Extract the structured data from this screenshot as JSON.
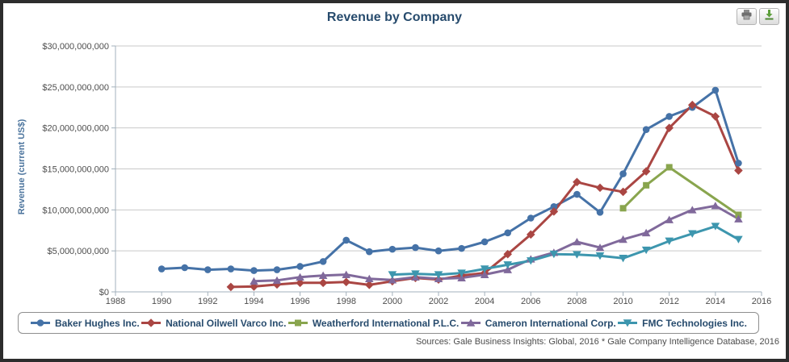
{
  "header": {
    "print_button": "print chart",
    "download_button": "download chart"
  },
  "source_note": "Sources: Gale Business Insights: Global, 2016 * Gale Company Intelligence Database, 2016",
  "colors": {
    "title": "#274b6d",
    "axis_title": "#4d759e",
    "grid": "#c9c9c9",
    "axis_line": "#a3b1bc",
    "tick_label": "#4d4d4d",
    "download_icon_green": "#5ea03c"
  },
  "chart_data": {
    "type": "line",
    "title": "Revenue by Company",
    "xlabel": "",
    "ylabel": "Revenue (current US$)",
    "xlim": [
      1988,
      2016
    ],
    "ylim": [
      0,
      30000000000
    ],
    "grid": "horizontal",
    "legend_position": "bottom",
    "x_ticks": [
      1988,
      1990,
      1992,
      1994,
      1996,
      1998,
      2000,
      2002,
      2004,
      2006,
      2008,
      2010,
      2012,
      2014,
      2016
    ],
    "y_ticks": [
      0,
      5000000000,
      10000000000,
      15000000000,
      20000000000,
      25000000000,
      30000000000
    ],
    "y_tick_labels": [
      "$0",
      "$5,000,000,000",
      "$10,000,000,000",
      "$15,000,000,000",
      "$20,000,000,000",
      "$25,000,000,000",
      "$30,000,000,000"
    ],
    "series": [
      {
        "name": "Baker Hughes Inc.",
        "color": "#4572A7",
        "marker": "circle",
        "points": [
          [
            1990,
            2800000000
          ],
          [
            1991,
            2950000000
          ],
          [
            1992,
            2700000000
          ],
          [
            1993,
            2800000000
          ],
          [
            1994,
            2600000000
          ],
          [
            1995,
            2700000000
          ],
          [
            1996,
            3100000000
          ],
          [
            1997,
            3700000000
          ],
          [
            1998,
            6300000000
          ],
          [
            1999,
            4900000000
          ],
          [
            2000,
            5200000000
          ],
          [
            2001,
            5400000000
          ],
          [
            2002,
            5000000000
          ],
          [
            2003,
            5300000000
          ],
          [
            2004,
            6100000000
          ],
          [
            2005,
            7200000000
          ],
          [
            2006,
            9000000000
          ],
          [
            2007,
            10400000000
          ],
          [
            2008,
            11900000000
          ],
          [
            2009,
            9700000000
          ],
          [
            2010,
            14400000000
          ],
          [
            2011,
            19800000000
          ],
          [
            2012,
            21400000000
          ],
          [
            2013,
            22500000000
          ],
          [
            2014,
            24600000000
          ],
          [
            2015,
            15700000000
          ]
        ]
      },
      {
        "name": "National Oilwell Varco Inc.",
        "color": "#AA4643",
        "marker": "diamond",
        "points": [
          [
            1993,
            600000000
          ],
          [
            1994,
            650000000
          ],
          [
            1995,
            900000000
          ],
          [
            1996,
            1100000000
          ],
          [
            1997,
            1100000000
          ],
          [
            1998,
            1200000000
          ],
          [
            1999,
            850000000
          ],
          [
            2000,
            1300000000
          ],
          [
            2001,
            1700000000
          ],
          [
            2002,
            1500000000
          ],
          [
            2003,
            2000000000
          ],
          [
            2004,
            2300000000
          ],
          [
            2005,
            4600000000
          ],
          [
            2006,
            7000000000
          ],
          [
            2007,
            9800000000
          ],
          [
            2008,
            13400000000
          ],
          [
            2009,
            12700000000
          ],
          [
            2010,
            12200000000
          ],
          [
            2011,
            14700000000
          ],
          [
            2012,
            20000000000
          ],
          [
            2013,
            22800000000
          ],
          [
            2014,
            21400000000
          ],
          [
            2015,
            14800000000
          ]
        ]
      },
      {
        "name": "Weatherford International P.L.C.",
        "color": "#89A54E",
        "marker": "square",
        "points": [
          [
            2010,
            10200000000
          ],
          [
            2011,
            13000000000
          ],
          [
            2012,
            15200000000
          ],
          [
            2015,
            9400000000
          ]
        ]
      },
      {
        "name": "Cameron International Corp.",
        "color": "#80699B",
        "marker": "triangle",
        "points": [
          [
            1994,
            1300000000
          ],
          [
            1995,
            1400000000
          ],
          [
            1996,
            1800000000
          ],
          [
            1997,
            2000000000
          ],
          [
            1998,
            2100000000
          ],
          [
            1999,
            1600000000
          ],
          [
            2000,
            1450000000
          ],
          [
            2001,
            1800000000
          ],
          [
            2002,
            1600000000
          ],
          [
            2003,
            1700000000
          ],
          [
            2004,
            2100000000
          ],
          [
            2005,
            2700000000
          ],
          [
            2006,
            4000000000
          ],
          [
            2007,
            4800000000
          ],
          [
            2008,
            6100000000
          ],
          [
            2009,
            5400000000
          ],
          [
            2010,
            6400000000
          ],
          [
            2011,
            7200000000
          ],
          [
            2012,
            8800000000
          ],
          [
            2013,
            10000000000
          ],
          [
            2014,
            10500000000
          ],
          [
            2015,
            8900000000
          ]
        ]
      },
      {
        "name": "FMC Technologies Inc.",
        "color": "#3D96AE",
        "marker": "triangle-down",
        "points": [
          [
            2000,
            2100000000
          ],
          [
            2001,
            2200000000
          ],
          [
            2002,
            2100000000
          ],
          [
            2003,
            2300000000
          ],
          [
            2004,
            2800000000
          ],
          [
            2005,
            3300000000
          ],
          [
            2006,
            3800000000
          ],
          [
            2007,
            4600000000
          ],
          [
            2008,
            4550000000
          ],
          [
            2009,
            4400000000
          ],
          [
            2010,
            4100000000
          ],
          [
            2011,
            5100000000
          ],
          [
            2012,
            6200000000
          ],
          [
            2013,
            7100000000
          ],
          [
            2014,
            8000000000
          ],
          [
            2015,
            6400000000
          ]
        ]
      }
    ]
  }
}
